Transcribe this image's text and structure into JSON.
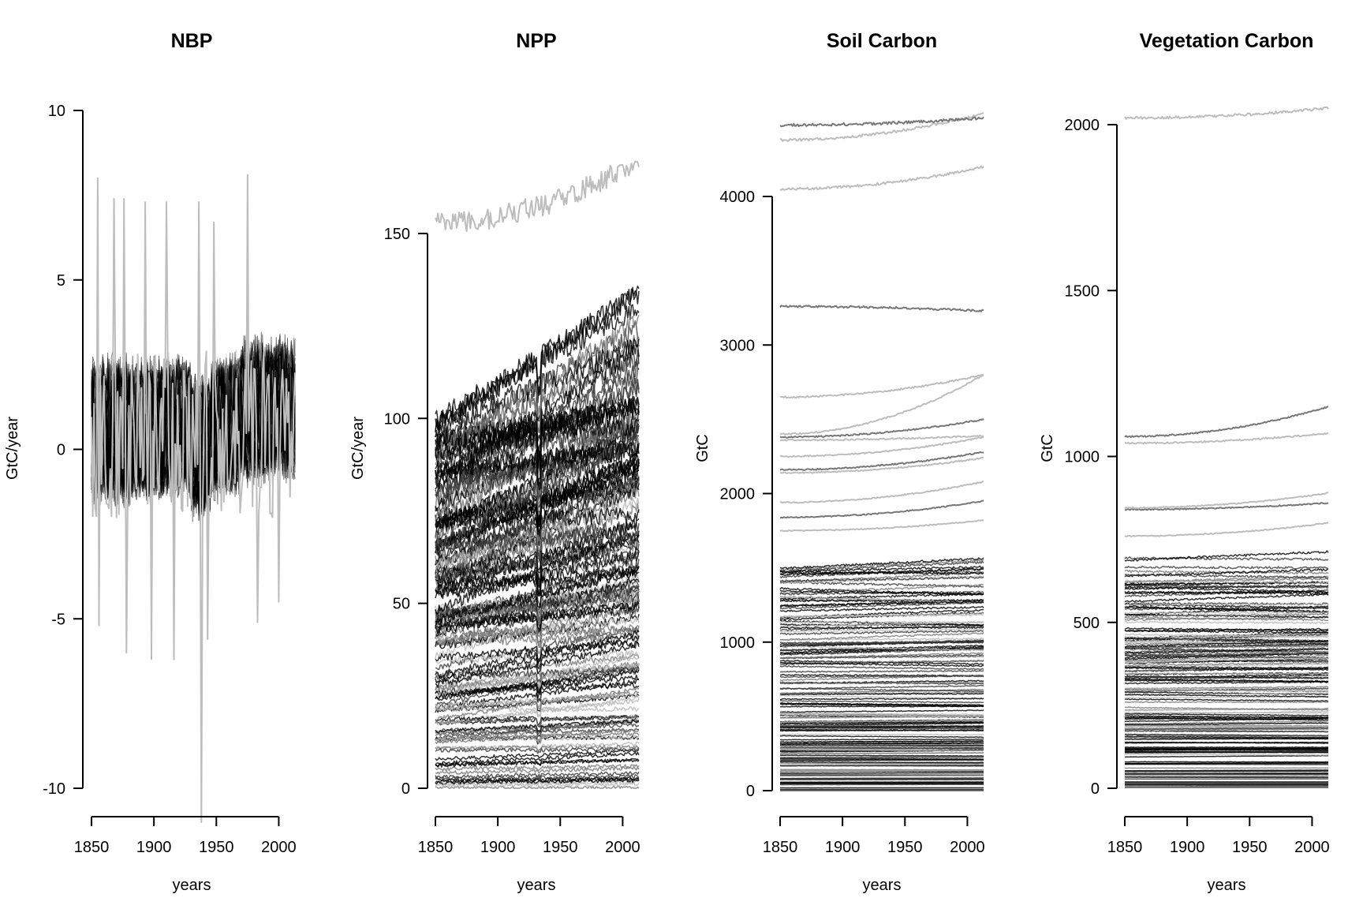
{
  "chart_data": [
    {
      "type": "line",
      "title": "NBP",
      "xlabel": "years",
      "ylabel": "GtC/year",
      "xlim": [
        1850,
        2013
      ],
      "ylim": [
        -10,
        10
      ],
      "xticks": [
        1850,
        1900,
        1950,
        2000
      ],
      "yticks": [
        -10,
        -5,
        0,
        5,
        10
      ],
      "grid": false,
      "series_color": "#000000",
      "highlight_color": "#bdbdbd",
      "ensemble": {
        "members": 160,
        "level": 0.5,
        "amplitude": 1.6,
        "trend": 0.3,
        "min": -2.5,
        "max": 5.5
      },
      "outliers": {
        "spike_years": [
          1855,
          1868,
          1876,
          1893,
          1910,
          1936,
          1948,
          1975
        ],
        "spike_values": [
          8.0,
          7.4,
          7.4,
          7.3,
          7.3,
          7.3,
          6.7,
          8.1
        ],
        "dip_years": [
          1856,
          1878,
          1898,
          1916,
          1938,
          1943,
          1983,
          2000
        ],
        "dip_values": [
          -5.2,
          -6.0,
          -6.2,
          -6.2,
          -11.0,
          -5.6,
          -5.1,
          -4.5
        ]
      }
    },
    {
      "type": "line",
      "title": "NPP",
      "xlabel": "years",
      "ylabel": "GtC/year",
      "xlim": [
        1850,
        2013
      ],
      "ylim": [
        0,
        160
      ],
      "xticks": [
        1850,
        1900,
        1950,
        2000
      ],
      "yticks": [
        0,
        50,
        100,
        150
      ],
      "grid": false,
      "series_color": "#000000",
      "highlight_color": "#bdbdbd",
      "ensemble": {
        "members": 150,
        "start_min": 0,
        "start_max": 100,
        "end_min": 0,
        "end_max": 140,
        "top_series_start": 153,
        "top_series_end": 170
      }
    },
    {
      "type": "line",
      "title": "Soil Carbon",
      "xlabel": "years",
      "ylabel": "GtC",
      "xlim": [
        1850,
        2013
      ],
      "ylim": [
        0,
        4000
      ],
      "xticks": [
        1850,
        1900,
        1950,
        2000
      ],
      "yticks": [
        0,
        1000,
        2000,
        3000,
        4000
      ],
      "grid": false,
      "series_color": "#000000",
      "highlight_color": "#bdbdbd",
      "ensemble": {
        "members": 170,
        "dense_max": 1500,
        "upper_start": [
          1750,
          1840,
          1940,
          2140,
          2160,
          2250,
          2360,
          2380,
          2400,
          2650,
          3260,
          4050,
          4380,
          4480
        ],
        "upper_end": [
          1820,
          1950,
          2080,
          2240,
          2280,
          2380,
          2390,
          2500,
          2800,
          2800,
          3230,
          4200,
          4560,
          4530
        ]
      }
    },
    {
      "type": "line",
      "title": "Vegetation Carbon",
      "xlabel": "years",
      "ylabel": "GtC",
      "xlim": [
        1850,
        2013
      ],
      "ylim": [
        0,
        2000
      ],
      "xticks": [
        1850,
        1900,
        1950,
        2000
      ],
      "yticks": [
        0,
        500,
        1000,
        1500,
        2000
      ],
      "grid": false,
      "series_color": "#000000",
      "highlight_color": "#bdbdbd",
      "ensemble": {
        "members": 170,
        "dense_max": 700,
        "upper_start": [
          760,
          840,
          845,
          1040,
          1060,
          2020
        ],
        "upper_end": [
          800,
          860,
          890,
          1070,
          1150,
          2050
        ]
      }
    }
  ]
}
